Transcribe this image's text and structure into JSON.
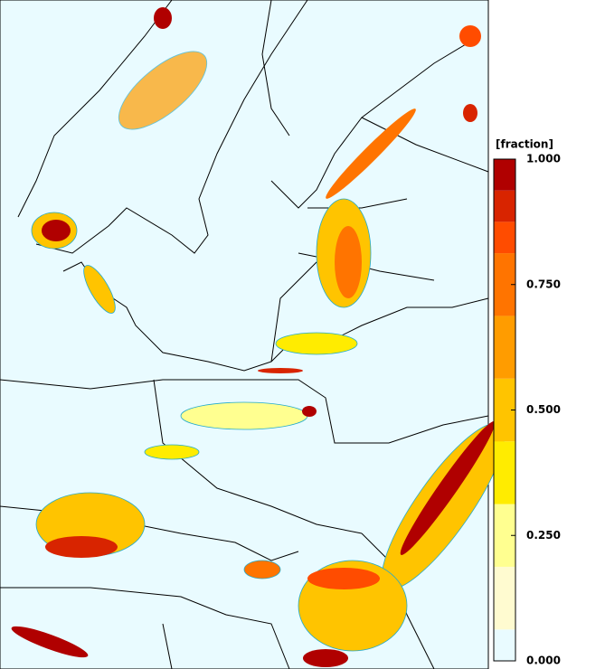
{
  "colorbar": {
    "label": "[fraction]",
    "lim": [
      0,
      1
    ],
    "ticks": [
      {
        "value": 0,
        "label": "0.000"
      },
      {
        "value": 0.25,
        "label": "0.250"
      },
      {
        "value": 0.5,
        "label": "0.500"
      },
      {
        "value": 0.75,
        "label": "0.750"
      },
      {
        "value": 1,
        "label": "1.000"
      }
    ],
    "bounds": [
      0,
      0.0625,
      0.1875,
      0.3125,
      0.4375,
      0.5625,
      0.6875,
      0.8125,
      0.875,
      0.9375,
      1
    ],
    "colors": [
      "#e9fbff",
      "#fffbd0",
      "#ffff90",
      "#ffec00",
      "#ffc400",
      "#ff9c00",
      "#ff7400",
      "#ff4c00",
      "#d82400",
      "#b00000"
    ]
  }
}
